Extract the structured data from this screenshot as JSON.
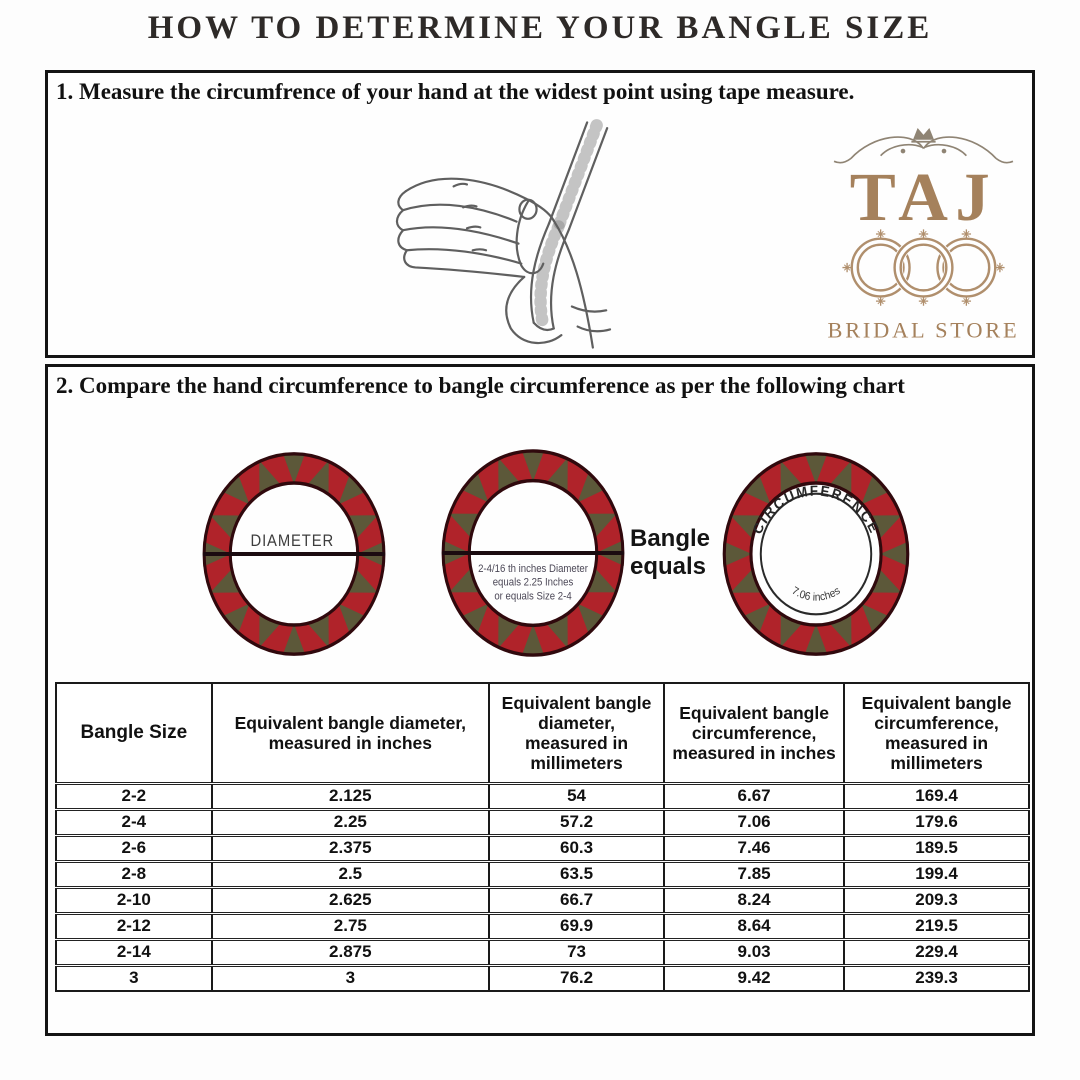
{
  "page": {
    "title": "HOW TO DETERMINE YOUR BANGLE SIZE"
  },
  "step1": {
    "heading": "1. Measure the circumfrence of your hand at the widest point using tape measure."
  },
  "logo": {
    "title": "TAJ",
    "subtitle": "BRIDAL STORE"
  },
  "step2": {
    "heading": "2. Compare the hand circumference to bangle circumference as per the following chart"
  },
  "diagram": {
    "diameter_label": "DIAMETER",
    "middle_note_line1": "2-4/16 th inches Diameter",
    "middle_note_line2": "equals 2.25 Inches",
    "middle_note_line3": "or equals Size 2-4",
    "equals_line1": "Bangle",
    "equals_line2": "equals",
    "circumference_label": "CIRCUMFERENCE",
    "circumference_value": "7.06 inches"
  },
  "colors": {
    "ring_red": "#b0232a",
    "ring_accent_olive": "#5c5839",
    "ring_edge": "#30090d",
    "logo_tan": "#a5815c",
    "border_black": "#141414"
  },
  "size_table": {
    "columns": [
      "Bangle Size",
      "Equivalent bangle diameter, measured in inches",
      "Equivalent bangle diameter, measured in millimeters",
      "Equivalent bangle circumference, measured in inches",
      "Equivalent bangle circumference, measured in millimeters"
    ],
    "rows": [
      [
        "2-2",
        "2.125",
        "54",
        "6.67",
        "169.4"
      ],
      [
        "2-4",
        "2.25",
        "57.2",
        "7.06",
        "179.6"
      ],
      [
        "2-6",
        "2.375",
        "60.3",
        "7.46",
        "189.5"
      ],
      [
        "2-8",
        "2.5",
        "63.5",
        "7.85",
        "199.4"
      ],
      [
        "2-10",
        "2.625",
        "66.7",
        "8.24",
        "209.3"
      ],
      [
        "2-12",
        "2.75",
        "69.9",
        "8.64",
        "219.5"
      ],
      [
        "2-14",
        "2.875",
        "73",
        "9.03",
        "229.4"
      ],
      [
        "3",
        "3",
        "76.2",
        "9.42",
        "239.3"
      ]
    ]
  }
}
